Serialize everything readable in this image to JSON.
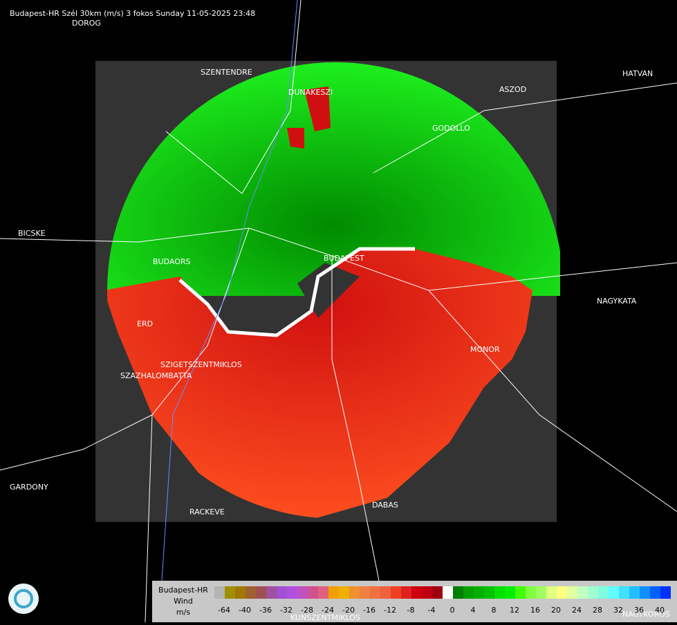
{
  "header": {
    "title": "Budapest-HR Szél 30km (m/s) 3 fokos Sunday 11-05-2025 23:48"
  },
  "towns": [
    "DOROG",
    "SZENTENDRE",
    "DUNAKESZI",
    "HATVAN",
    "ASZOD",
    "GODOLLO",
    "BICSKE",
    "BUDAORS",
    "BUDAPEST",
    "NAGYKATA",
    "ERD",
    "MONOR",
    "SZIGETSZENTMIKLOS",
    "SZAZHALOMBATTA",
    "GARDONY",
    "RACKEVE",
    "DABAS",
    "KUNSZENTMIKLOS",
    "NAGYKOROS"
  ],
  "legend": {
    "station": "Budapest-HR",
    "quantity": "Wind",
    "unit": "m/s",
    "ticks": [
      -64,
      -40,
      -36,
      -32,
      -28,
      -24,
      -20,
      -16,
      -12,
      -8,
      -4,
      0,
      4,
      8,
      12,
      16,
      20,
      24,
      28,
      32,
      36,
      40
    ],
    "colors": [
      "#b4b4b4",
      "#a09000",
      "#a07800",
      "#a06030",
      "#a05050",
      "#a050a0",
      "#a050d0",
      "#b050e0",
      "#c050c0",
      "#d05090",
      "#e06080",
      "#f0a000",
      "#f0b000",
      "#f09030",
      "#f08040",
      "#f07040",
      "#f06040",
      "#f04020",
      "#e02020",
      "#d00010",
      "#c00010",
      "#a00010",
      "#ffffff",
      "#008000",
      "#00a000",
      "#00b000",
      "#00c000",
      "#00e000",
      "#00f000",
      "#40ff00",
      "#80ff40",
      "#a0ff60",
      "#e0ff80",
      "#ffff80",
      "#e0ffa0",
      "#c0ffc0",
      "#a0ffd0",
      "#80ffe0",
      "#60ffff",
      "#40e0ff",
      "#20c0ff",
      "#1090ff",
      "#0060ff",
      "#0030ff"
    ]
  }
}
